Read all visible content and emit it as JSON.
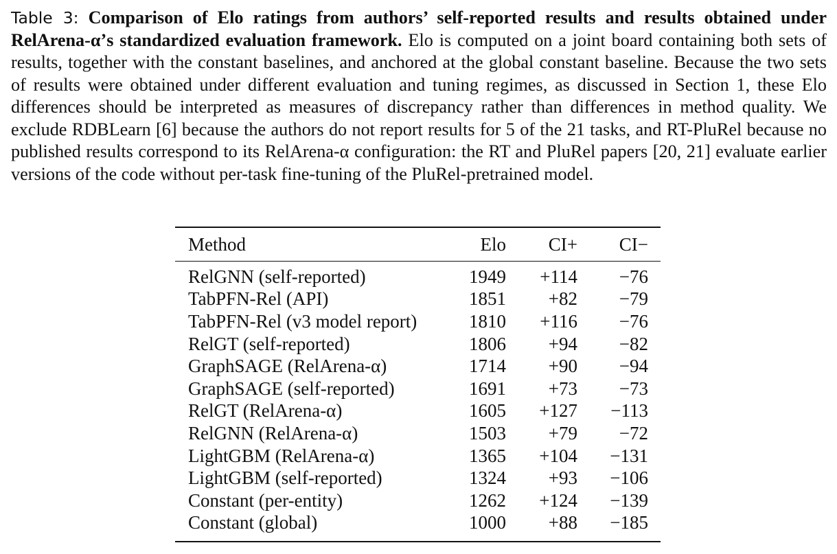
{
  "caption": {
    "label": "Table 3:",
    "title": "Comparison of Elo ratings from authors’ self-reported results and results obtained under RelArena-α’s standardized evaluation framework.",
    "text": "Elo is computed on a joint board containing both sets of results, together with the constant baselines, and anchored at the global constant baseline. Because the two sets of results were obtained under different evaluation and tuning regimes, as discussed in Section 1, these Elo differences should be interpreted as measures of discrepancy rather than differences in method quality. We exclude RDBLearn [6] because the authors do not report results for 5 of the 21 tasks, and RT-PluRel because no published results correspond to its RelArena-α configuration: the RT and PluRel papers [20, 21] evaluate earlier versions of the code without per-task fine-tuning of the PluRel-pretrained model."
  },
  "table": {
    "headers": {
      "method": "Method",
      "elo": "Elo",
      "ci_plus": "CI+",
      "ci_minus": "CI−"
    },
    "rows": [
      {
        "method": "RelGNN (self-reported)",
        "elo": "1949",
        "ci_plus": "+114",
        "ci_minus": "−76"
      },
      {
        "method": "TabPFN-Rel (API)",
        "elo": "1851",
        "ci_plus": "+82",
        "ci_minus": "−79"
      },
      {
        "method": "TabPFN-Rel (v3 model report)",
        "elo": "1810",
        "ci_plus": "+116",
        "ci_minus": "−76"
      },
      {
        "method": "RelGT (self-reported)",
        "elo": "1806",
        "ci_plus": "+94",
        "ci_minus": "−82"
      },
      {
        "method": "GraphSAGE (RelArena-α)",
        "elo": "1714",
        "ci_plus": "+90",
        "ci_minus": "−94"
      },
      {
        "method": "GraphSAGE (self-reported)",
        "elo": "1691",
        "ci_plus": "+73",
        "ci_minus": "−73"
      },
      {
        "method": "RelGT (RelArena-α)",
        "elo": "1605",
        "ci_plus": "+127",
        "ci_minus": "−113"
      },
      {
        "method": "RelGNN (RelArena-α)",
        "elo": "1503",
        "ci_plus": "+79",
        "ci_minus": "−72"
      },
      {
        "method": "LightGBM (RelArena-α)",
        "elo": "1365",
        "ci_plus": "+104",
        "ci_minus": "−131"
      },
      {
        "method": "LightGBM (self-reported)",
        "elo": "1324",
        "ci_plus": "+93",
        "ci_minus": "−106"
      },
      {
        "method": "Constant (per-entity)",
        "elo": "1262",
        "ci_plus": "+124",
        "ci_minus": "−139"
      },
      {
        "method": "Constant (global)",
        "elo": "1000",
        "ci_plus": "+88",
        "ci_minus": "−185"
      }
    ]
  }
}
